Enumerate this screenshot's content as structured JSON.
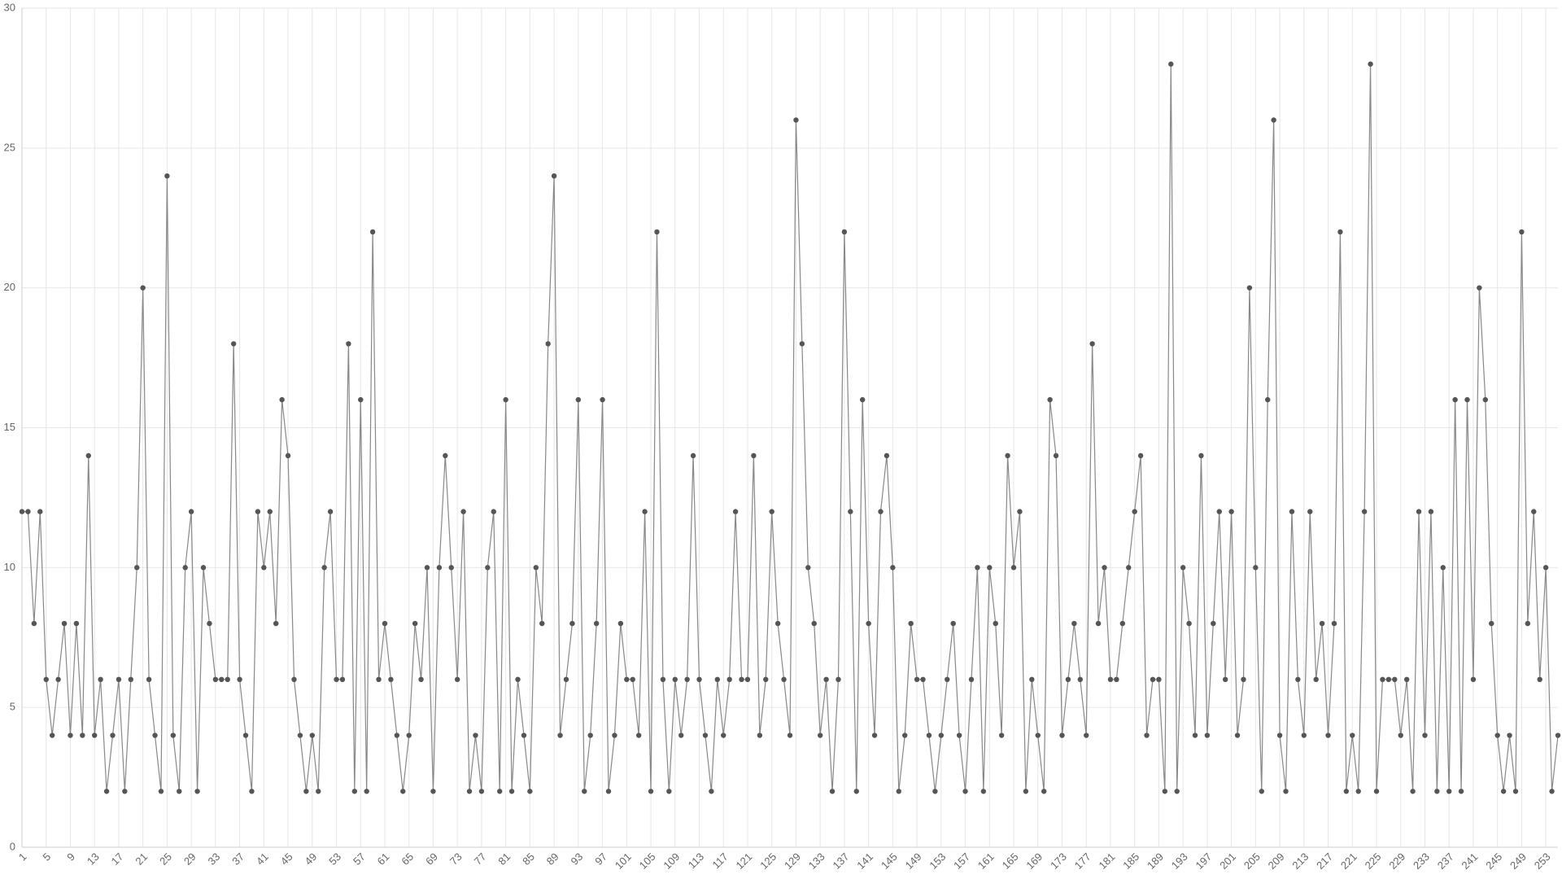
{
  "chart_data": {
    "type": "line",
    "x": [
      1,
      2,
      3,
      4,
      5,
      6,
      7,
      8,
      9,
      10,
      11,
      12,
      13,
      14,
      15,
      16,
      17,
      18,
      19,
      20,
      21,
      22,
      23,
      24,
      25,
      26,
      27,
      28,
      29,
      30,
      31,
      32,
      33,
      34,
      35,
      36,
      37,
      38,
      39,
      40,
      41,
      42,
      43,
      44,
      45,
      46,
      47,
      48,
      49,
      50,
      51,
      52,
      53,
      54,
      55,
      56,
      57,
      58,
      59,
      60,
      61,
      62,
      63,
      64,
      65,
      66,
      67,
      68,
      69,
      70,
      71,
      72,
      73,
      74,
      75,
      76,
      77,
      78,
      79,
      80,
      81,
      82,
      83,
      84,
      85,
      86,
      87,
      88,
      89,
      90,
      91,
      92,
      93,
      94,
      95,
      96,
      97,
      98,
      99,
      100,
      101,
      102,
      103,
      104,
      105,
      106,
      107,
      108,
      109,
      110,
      111,
      112,
      113,
      114,
      115,
      116,
      117,
      118,
      119,
      120,
      121,
      122,
      123,
      124,
      125,
      126,
      127,
      128,
      129,
      130,
      131,
      132,
      133,
      134,
      135,
      136,
      137,
      138,
      139,
      140,
      141,
      142,
      143,
      144,
      145,
      146,
      147,
      148,
      149,
      150,
      151,
      152,
      153,
      154,
      155,
      156,
      157,
      158,
      159,
      160,
      161,
      162,
      163,
      164,
      165,
      166,
      167,
      168,
      169,
      170,
      171,
      172,
      173,
      174,
      175,
      176,
      177,
      178,
      179,
      180,
      181,
      182,
      183,
      184,
      185,
      186,
      187,
      188,
      189,
      190,
      191,
      192,
      193,
      194,
      195,
      196,
      197,
      198,
      199,
      200,
      201,
      202,
      203,
      204,
      205,
      206,
      207,
      208,
      209,
      210,
      211,
      212,
      213,
      214,
      215,
      216,
      217,
      218,
      219,
      220,
      221,
      222,
      223,
      224,
      225,
      226,
      227,
      228,
      229,
      230,
      231,
      232,
      233,
      234,
      235,
      236,
      237,
      238,
      239,
      240,
      241,
      242,
      243,
      244,
      245,
      246,
      247,
      248,
      249,
      250,
      251,
      252,
      253,
      254,
      255
    ],
    "values": [
      12,
      12,
      8,
      12,
      6,
      4,
      6,
      8,
      4,
      8,
      4,
      14,
      4,
      6,
      2,
      4,
      6,
      2,
      6,
      10,
      20,
      6,
      4,
      2,
      24,
      4,
      2,
      10,
      12,
      2,
      10,
      8,
      6,
      6,
      6,
      18,
      6,
      4,
      2,
      12,
      10,
      12,
      8,
      16,
      14,
      6,
      4,
      2,
      4,
      2,
      10,
      12,
      6,
      6,
      18,
      2,
      16,
      2,
      22,
      6,
      8,
      6,
      4,
      2,
      4,
      8,
      6,
      10,
      2,
      10,
      14,
      10,
      6,
      12,
      2,
      4,
      2,
      10,
      12,
      2,
      16,
      2,
      6,
      4,
      2,
      10,
      8,
      18,
      24,
      4,
      6,
      8,
      16,
      2,
      4,
      8,
      16,
      2,
      4,
      8,
      6,
      6,
      4,
      12,
      2,
      22,
      6,
      2,
      6,
      4,
      6,
      14,
      6,
      4,
      2,
      6,
      4,
      6,
      12,
      6,
      6,
      14,
      4,
      6,
      12,
      8,
      6,
      4,
      26,
      18,
      10,
      8,
      4,
      6,
      2,
      6,
      22,
      12,
      2,
      16,
      8,
      4,
      12,
      14,
      10,
      2,
      4,
      8,
      6,
      6,
      4,
      2,
      4,
      6,
      8,
      4,
      2,
      6,
      10,
      2,
      10,
      8,
      4,
      14,
      10,
      12,
      2,
      6,
      4,
      2,
      16,
      14,
      4,
      6,
      8,
      6,
      4,
      18,
      8,
      10,
      6,
      6,
      8,
      10,
      12,
      14,
      4,
      6,
      6,
      2,
      28,
      2,
      10,
      8,
      4,
      14,
      4,
      8,
      12,
      6,
      12,
      4,
      6,
      20,
      10,
      2,
      16,
      26,
      4,
      2,
      12,
      6,
      4,
      12,
      6,
      8,
      4,
      8,
      22,
      2,
      4,
      2,
      12,
      28,
      2,
      6,
      6,
      6,
      4,
      6,
      2,
      12,
      4,
      12,
      2,
      10,
      2,
      16,
      2,
      16,
      6,
      20,
      16,
      8,
      4,
      2,
      4,
      2,
      22,
      8,
      12,
      6,
      10,
      2,
      4
    ],
    "xlim": [
      1,
      255
    ],
    "xticks": [
      1,
      5,
      9,
      13,
      17,
      21,
      25,
      29,
      33,
      37,
      41,
      45,
      49,
      53,
      57,
      61,
      65,
      69,
      73,
      77,
      81,
      85,
      89,
      93,
      97,
      101,
      105,
      109,
      113,
      117,
      121,
      125,
      129,
      133,
      137,
      141,
      145,
      149,
      153,
      157,
      161,
      165,
      169,
      173,
      177,
      181,
      185,
      189,
      193,
      197,
      201,
      205,
      209,
      213,
      217,
      221,
      225,
      229,
      233,
      237,
      241,
      245,
      249,
      253
    ],
    "ylim": [
      0,
      30
    ],
    "yticks": [
      0,
      5,
      10,
      15,
      20,
      25,
      30
    ],
    "grid": true,
    "color": "#888888",
    "point_color": "#555555"
  }
}
